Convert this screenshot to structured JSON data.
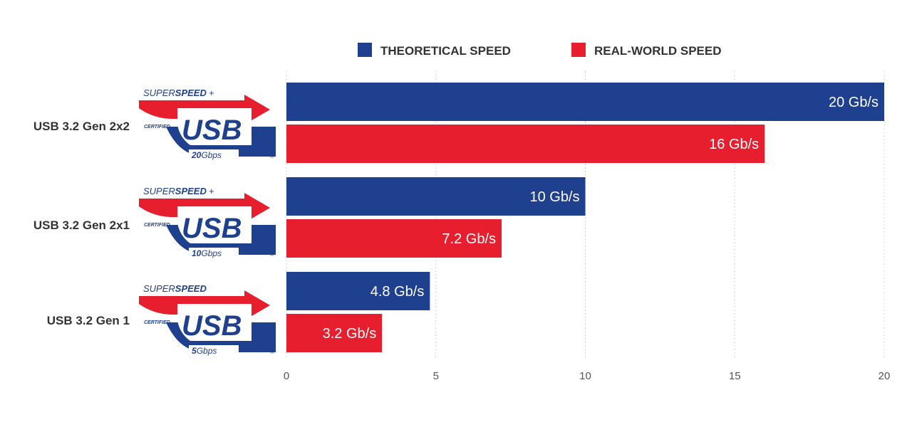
{
  "chart_data": {
    "type": "bar",
    "orientation": "horizontal",
    "categories": [
      "USB 3.2 Gen 2x2",
      "USB 3.2 Gen 2x1",
      "USB 3.2 Gen 1"
    ],
    "series": [
      {
        "name": "THEORETICAL SPEED",
        "color": "#1f3f8f",
        "values": [
          20,
          10,
          4.8
        ],
        "labels": [
          "20 Gb/s",
          "10 Gb/s",
          "4.8 Gb/s"
        ]
      },
      {
        "name": "REAL-WORLD SPEED",
        "color": "#e61e2e",
        "values": [
          16,
          7.2,
          3.2
        ],
        "labels": [
          "16 Gb/s",
          "7.2 Gb/s",
          "3.2 Gb/s"
        ]
      }
    ],
    "xlim": [
      0,
      20
    ],
    "xticks": [
      0,
      5,
      10,
      15,
      20
    ],
    "grid": true,
    "legend_position": "top",
    "title": "",
    "xlabel": "",
    "ylabel": ""
  },
  "badges": [
    {
      "superspeed_light": "SUPER",
      "superspeed_bold": "SPEED",
      "plus": "+",
      "certified": "CERTIFIED",
      "usb": "USB",
      "speed_num": "20",
      "speed_unit": "Gbps",
      "reg": "®"
    },
    {
      "superspeed_light": "SUPER",
      "superspeed_bold": "SPEED",
      "plus": "+",
      "certified": "CERTIFIED",
      "usb": "USB",
      "speed_num": "10",
      "speed_unit": "Gbps",
      "reg": "®"
    },
    {
      "superspeed_light": "SUPER",
      "superspeed_bold": "SPEED",
      "plus": "",
      "certified": "CERTIFIED",
      "usb": "USB",
      "speed_num": "5",
      "speed_unit": "Gbps",
      "reg": "®"
    }
  ]
}
